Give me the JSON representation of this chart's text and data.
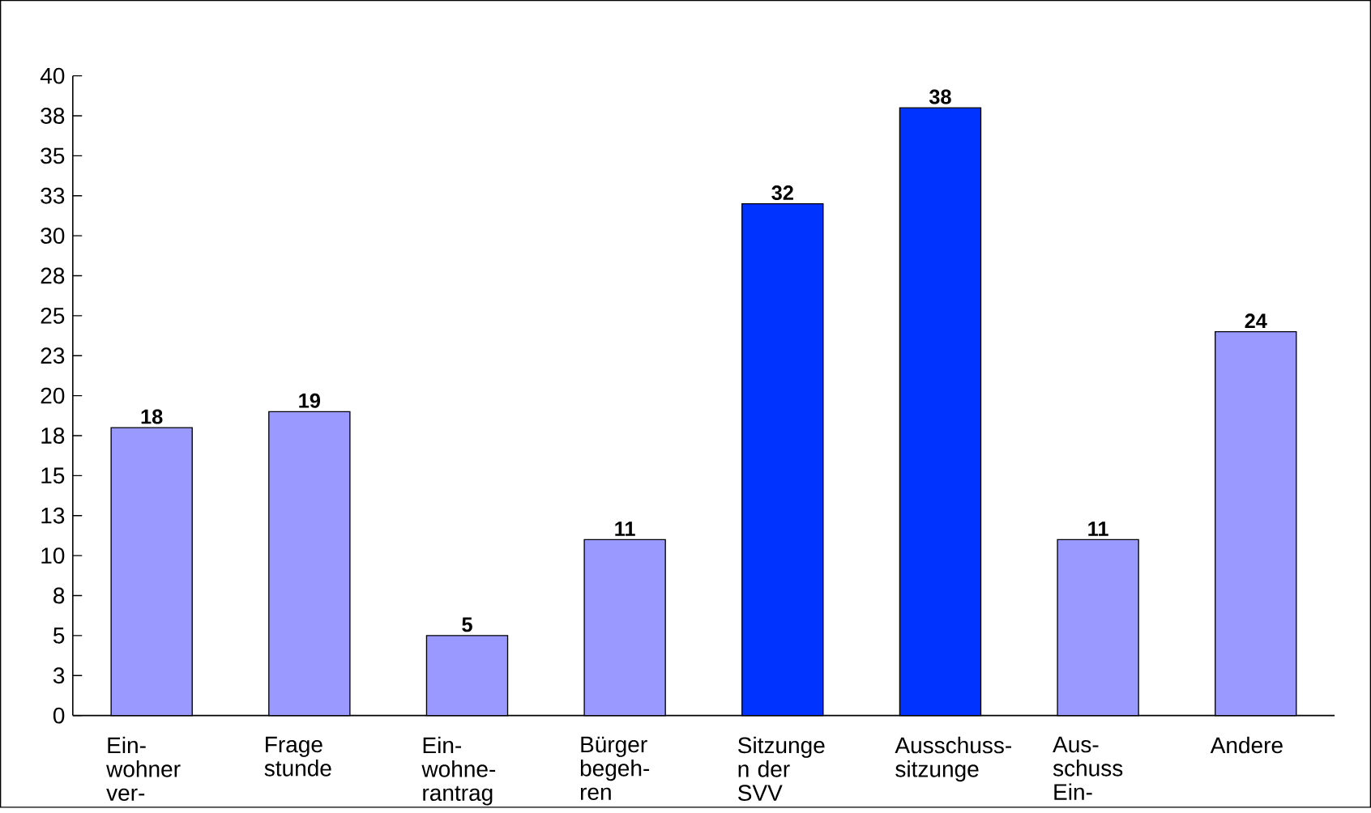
{
  "chart_data": {
    "type": "bar",
    "categories": [
      "Ein- wohner ver-",
      "Frage stunde",
      "Ein- wohne- rantrag",
      "Bürger begeh- ren",
      "Sitzunge n der SVV",
      "Ausschuss- sitzunge",
      "Aus- schuss Ein-",
      "Andere"
    ],
    "values": [
      18,
      19,
      5,
      11,
      32,
      38,
      11,
      24
    ],
    "colors": [
      "#9999ff",
      "#9999ff",
      "#9999ff",
      "#9999ff",
      "#0033ff",
      "#0033ff",
      "#9999ff",
      "#9999ff"
    ],
    "ylim": [
      0,
      40
    ],
    "yticks": [
      0,
      {
        "value": 2.5,
        "label": "3"
      },
      5,
      {
        "value": 7.5,
        "label": "8"
      },
      10,
      {
        "value": 12.5,
        "label": "13"
      },
      15,
      {
        "value": 17.5,
        "label": "18"
      },
      20,
      {
        "value": 22.5,
        "label": "23"
      },
      25,
      {
        "value": 27.5,
        "label": "28"
      },
      30,
      {
        "value": 32.5,
        "label": "33"
      },
      35,
      {
        "value": 37.5,
        "label": "38"
      },
      40
    ],
    "data_labels": true
  }
}
